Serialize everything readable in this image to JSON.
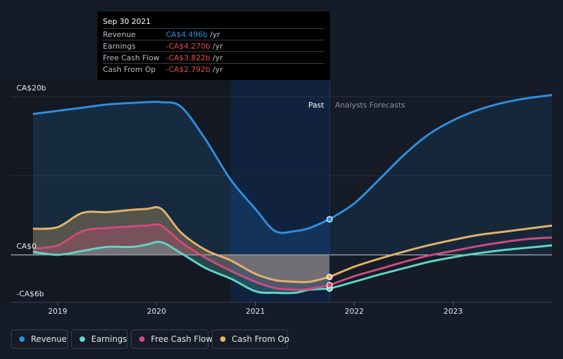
{
  "tooltip": {
    "date": "Sep 30 2021",
    "rows": [
      {
        "label": "Revenue",
        "value": "CA$4.496b",
        "unit": "/yr",
        "color": "#2d8fe0"
      },
      {
        "label": "Earnings",
        "value": "-CA$4.270b",
        "unit": "/yr",
        "color": "#e84c4c"
      },
      {
        "label": "Free Cash Flow",
        "value": "-CA$3.822b",
        "unit": "/yr",
        "color": "#e84c4c"
      },
      {
        "label": "Cash From Op",
        "value": "-CA$2.792b",
        "unit": "/yr",
        "color": "#e84c4c"
      }
    ]
  },
  "legend": [
    {
      "label": "Revenue",
      "color": "#2d8fe0"
    },
    {
      "label": "Earnings",
      "color": "#5ed6c6"
    },
    {
      "label": "Free Cash Flow",
      "color": "#cf4b7d"
    },
    {
      "label": "Cash From Op",
      "color": "#e3b26a"
    }
  ],
  "chart_data": {
    "type": "line",
    "title": "",
    "xlabel": "",
    "ylabel": "",
    "y_unit": "CA$b",
    "ylim": [
      -6,
      20
    ],
    "xlim": [
      2018.75,
      2024.0
    ],
    "y_tick_labels": [
      {
        "value": 20,
        "label": "CA$20b"
      },
      {
        "value": 0,
        "label": "CA$0"
      },
      {
        "value": -6,
        "label": "-CA$6b"
      }
    ],
    "x_tick_labels": [
      {
        "value": 2019,
        "label": "2019"
      },
      {
        "value": 2020,
        "label": "2020"
      },
      {
        "value": 2021,
        "label": "2021"
      },
      {
        "value": 2022,
        "label": "2022"
      },
      {
        "value": 2023,
        "label": "2023"
      }
    ],
    "past_label": "Past",
    "forecast_label": "Analysts Forecasts",
    "past_end": 2021.75,
    "highlight_start": 2020.75,
    "series": [
      {
        "name": "Revenue",
        "color": "#2d8fe0",
        "points": [
          [
            2018.75,
            17.8
          ],
          [
            2019.0,
            18.2
          ],
          [
            2019.25,
            18.6
          ],
          [
            2019.5,
            19.0
          ],
          [
            2019.75,
            19.2
          ],
          [
            2019.9,
            19.3
          ],
          [
            2020.05,
            19.3
          ],
          [
            2020.25,
            18.7
          ],
          [
            2020.5,
            14.5
          ],
          [
            2020.75,
            9.5
          ],
          [
            2021.0,
            5.8
          ],
          [
            2021.2,
            3.0
          ],
          [
            2021.4,
            3.0
          ],
          [
            2021.55,
            3.4
          ],
          [
            2021.75,
            4.5
          ]
        ],
        "forecast": [
          [
            2021.75,
            4.5
          ],
          [
            2022.0,
            6.5
          ],
          [
            2022.25,
            9.5
          ],
          [
            2022.5,
            12.6
          ],
          [
            2022.75,
            15.2
          ],
          [
            2023.0,
            17.0
          ],
          [
            2023.25,
            18.3
          ],
          [
            2023.5,
            19.2
          ],
          [
            2023.75,
            19.8
          ],
          [
            2024.0,
            20.2
          ]
        ]
      },
      {
        "name": "Earnings",
        "color": "#5ed6c6",
        "points": [
          [
            2018.75,
            0.4
          ],
          [
            2019.0,
            0.0
          ],
          [
            2019.25,
            0.5
          ],
          [
            2019.5,
            1.0
          ],
          [
            2019.75,
            1.0
          ],
          [
            2019.9,
            1.3
          ],
          [
            2020.05,
            1.6
          ],
          [
            2020.25,
            0.2
          ],
          [
            2020.5,
            -1.7
          ],
          [
            2020.75,
            -3.0
          ],
          [
            2021.0,
            -4.6
          ],
          [
            2021.2,
            -4.8
          ],
          [
            2021.4,
            -4.8
          ],
          [
            2021.55,
            -4.4
          ],
          [
            2021.75,
            -4.27
          ]
        ],
        "forecast": [
          [
            2021.75,
            -4.27
          ],
          [
            2022.0,
            -3.4
          ],
          [
            2022.25,
            -2.5
          ],
          [
            2022.5,
            -1.7
          ],
          [
            2022.75,
            -0.9
          ],
          [
            2023.0,
            -0.3
          ],
          [
            2023.25,
            0.2
          ],
          [
            2023.5,
            0.6
          ],
          [
            2023.75,
            0.9
          ],
          [
            2024.0,
            1.2
          ]
        ]
      },
      {
        "name": "Free Cash Flow",
        "color": "#cf4b7d",
        "points": [
          [
            2018.75,
            0.8
          ],
          [
            2019.0,
            1.2
          ],
          [
            2019.25,
            3.0
          ],
          [
            2019.5,
            3.4
          ],
          [
            2019.75,
            3.6
          ],
          [
            2019.9,
            3.7
          ],
          [
            2020.05,
            3.7
          ],
          [
            2020.25,
            1.6
          ],
          [
            2020.5,
            -0.4
          ],
          [
            2020.75,
            -2.0
          ],
          [
            2021.0,
            -3.4
          ],
          [
            2021.2,
            -4.2
          ],
          [
            2021.4,
            -4.4
          ],
          [
            2021.55,
            -4.3
          ],
          [
            2021.75,
            -3.82
          ]
        ],
        "forecast": [
          [
            2021.75,
            -3.82
          ],
          [
            2022.0,
            -2.7
          ],
          [
            2022.25,
            -1.8
          ],
          [
            2022.5,
            -0.9
          ],
          [
            2022.75,
            -0.1
          ],
          [
            2023.0,
            0.5
          ],
          [
            2023.25,
            1.1
          ],
          [
            2023.5,
            1.6
          ],
          [
            2023.75,
            2.0
          ],
          [
            2024.0,
            2.2
          ]
        ]
      },
      {
        "name": "Cash From Op",
        "color": "#e3b26a",
        "points": [
          [
            2018.75,
            3.3
          ],
          [
            2019.0,
            3.5
          ],
          [
            2019.25,
            5.3
          ],
          [
            2019.5,
            5.4
          ],
          [
            2019.75,
            5.7
          ],
          [
            2019.9,
            5.8
          ],
          [
            2020.05,
            5.8
          ],
          [
            2020.25,
            2.8
          ],
          [
            2020.5,
            0.6
          ],
          [
            2020.75,
            -0.7
          ],
          [
            2021.0,
            -2.4
          ],
          [
            2021.2,
            -3.2
          ],
          [
            2021.4,
            -3.4
          ],
          [
            2021.55,
            -3.4
          ],
          [
            2021.75,
            -2.79
          ]
        ],
        "forecast": [
          [
            2021.75,
            -2.79
          ],
          [
            2022.0,
            -1.5
          ],
          [
            2022.25,
            -0.5
          ],
          [
            2022.5,
            0.4
          ],
          [
            2022.75,
            1.2
          ],
          [
            2023.0,
            1.9
          ],
          [
            2023.25,
            2.5
          ],
          [
            2023.5,
            2.9
          ],
          [
            2023.75,
            3.3
          ],
          [
            2024.0,
            3.7
          ]
        ]
      }
    ]
  }
}
